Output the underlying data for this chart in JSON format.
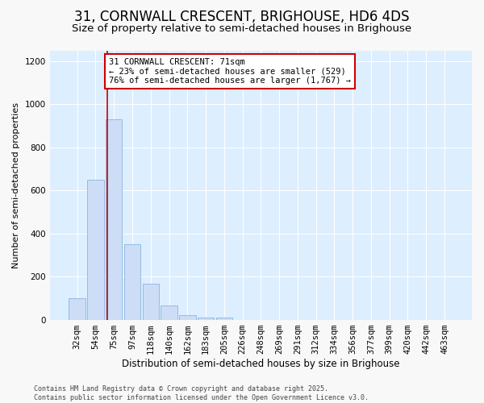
{
  "title": "31, CORNWALL CRESCENT, BRIGHOUSE, HD6 4DS",
  "subtitle": "Size of property relative to semi-detached houses in Brighouse",
  "xlabel": "Distribution of semi-detached houses by size in Brighouse",
  "ylabel": "Number of semi-detached properties",
  "categories": [
    "32sqm",
    "54sqm",
    "75sqm",
    "97sqm",
    "118sqm",
    "140sqm",
    "162sqm",
    "183sqm",
    "205sqm",
    "226sqm",
    "248sqm",
    "269sqm",
    "291sqm",
    "312sqm",
    "334sqm",
    "356sqm",
    "377sqm",
    "399sqm",
    "420sqm",
    "442sqm",
    "463sqm"
  ],
  "values": [
    100,
    650,
    930,
    350,
    165,
    65,
    20,
    10,
    10,
    0,
    0,
    0,
    0,
    0,
    0,
    0,
    0,
    0,
    0,
    0,
    0
  ],
  "bar_color": "#ccddf5",
  "bar_edge_color": "#8ab4e0",
  "plot_bg_color": "#ddeeff",
  "fig_bg_color": "#f8f8f8",
  "grid_color": "#ffffff",
  "red_line_x": 1.62,
  "annotation_text": "31 CORNWALL CRESCENT: 71sqm\n← 23% of semi-detached houses are smaller (529)\n76% of semi-detached houses are larger (1,767) →",
  "annotation_box_facecolor": "#ffffff",
  "annotation_box_edgecolor": "#cc0000",
  "footer_text": "Contains HM Land Registry data © Crown copyright and database right 2025.\nContains public sector information licensed under the Open Government Licence v3.0.",
  "ylim": [
    0,
    1250
  ],
  "yticks": [
    0,
    200,
    400,
    600,
    800,
    1000,
    1200
  ],
  "title_fontsize": 12,
  "subtitle_fontsize": 9.5,
  "xlabel_fontsize": 8.5,
  "ylabel_fontsize": 8,
  "tick_fontsize": 7.5,
  "annotation_fontsize": 7.5,
  "footer_fontsize": 6
}
